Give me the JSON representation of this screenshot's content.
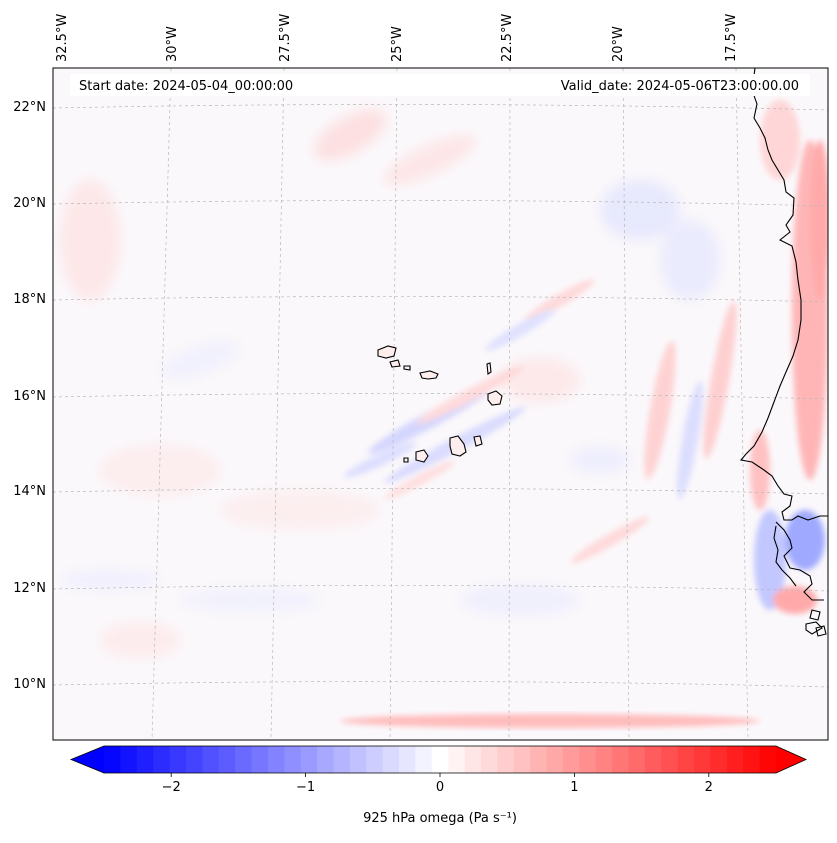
{
  "map": {
    "start_date": "Start date: 2024-05-04_00:00:00",
    "valid_date": "Valid_date: 2024-05-06T23:00:00.00",
    "lon_labels": [
      "32.5°W",
      "30°W",
      "27.5°W",
      "25°W",
      "22.5°W",
      "20°W",
      "17.5°W"
    ],
    "lat_labels": [
      "22°N",
      "20°N",
      "18°N",
      "16°N",
      "14°N",
      "12°N",
      "10°N"
    ],
    "colors": {
      "negative": "#0000ff",
      "zero": "#ffffff",
      "positive": "#ff0000",
      "land_outline": "#000000",
      "gridline": "#b0b0b0"
    }
  },
  "colorbar": {
    "label": "925 hPa omega (Pa s⁻¹)",
    "range": [
      -2.5,
      2.5
    ],
    "ticks": [
      {
        "value": -2,
        "label": "−2"
      },
      {
        "value": -1,
        "label": "−1"
      },
      {
        "value": 0,
        "label": "0"
      },
      {
        "value": 1,
        "label": "1"
      },
      {
        "value": 2,
        "label": "2"
      }
    ],
    "levels": 41
  }
}
